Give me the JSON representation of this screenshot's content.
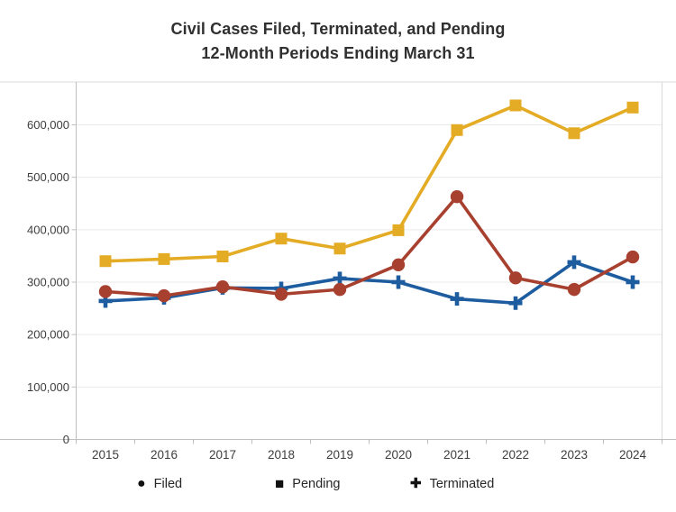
{
  "header": {
    "title_line1": "Civil Cases Filed, Terminated, and Pending",
    "title_line2": "12-Month Periods Ending March 31"
  },
  "legend": [
    {
      "label": "Filed",
      "marker": "circle"
    },
    {
      "label": "Pending",
      "marker": "square"
    },
    {
      "label": "Terminated",
      "marker": "plus"
    }
  ],
  "colors": {
    "filed": "#A7402E",
    "pending": "#E4AB25",
    "terminated": "#1D5C9F",
    "grid": "#EAEAEA",
    "axis": "#BFBFBF",
    "frame": "#D9D9D9",
    "tick_text": "#3D3D3D",
    "legend_marker": "#111111"
  },
  "chart_data": {
    "type": "line",
    "title": "Civil Cases Filed, Terminated, and Pending 12-Month Periods Ending March 31",
    "x": [
      2015,
      2016,
      2017,
      2018,
      2019,
      2020,
      2021,
      2022,
      2023,
      2024
    ],
    "series": [
      {
        "name": "Filed",
        "marker": "circle",
        "color_key": "filed",
        "values": [
          282000,
          274000,
          291000,
          277000,
          286000,
          333000,
          463000,
          308000,
          286000,
          348000
        ]
      },
      {
        "name": "Pending",
        "marker": "square",
        "color_key": "pending",
        "values": [
          340000,
          344000,
          349000,
          383000,
          364000,
          399000,
          590000,
          637000,
          584000,
          633000
        ]
      },
      {
        "name": "Terminated",
        "marker": "plus",
        "color_key": "terminated",
        "values": [
          264000,
          270000,
          289000,
          288000,
          307000,
          300000,
          268000,
          260000,
          338000,
          300000
        ]
      }
    ],
    "yticks": [
      0,
      100000,
      200000,
      300000,
      400000,
      500000,
      600000
    ],
    "ylim": [
      0,
      690000
    ],
    "xlabel": "",
    "ylabel": "",
    "grid": "horizontal",
    "legend_position": "bottom"
  }
}
